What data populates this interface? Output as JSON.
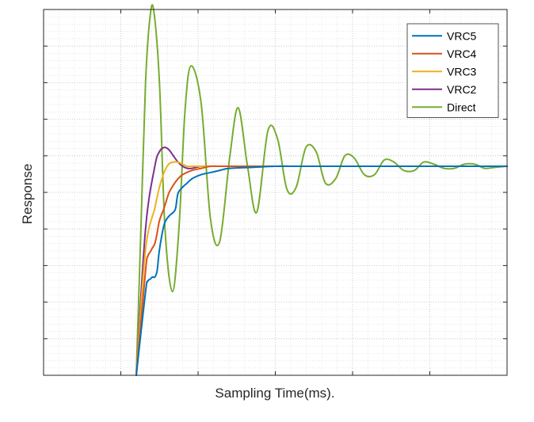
{
  "chart_data": {
    "type": "line",
    "title": "",
    "xlabel": "Sampling Time(ms).",
    "ylabel": "Response",
    "xlim": [
      0,
      1
    ],
    "ylim": [
      0,
      1.75
    ],
    "grid": true,
    "minor_grid": true,
    "x_ticks_count": 6,
    "y_ticks_count": 10,
    "tick_labels_shown": false,
    "legend": {
      "location": "top-right",
      "entries": [
        "VRC5",
        "VRC4",
        "VRC3",
        "VRC2",
        "Direct"
      ]
    },
    "series": [
      {
        "name": "VRC5",
        "color": "#0072BD",
        "x": [
          0.2,
          0.22,
          0.225,
          0.23,
          0.235,
          0.24,
          0.245,
          0.25,
          0.26,
          0.27,
          0.28,
          0.285,
          0.29,
          0.3,
          0.31,
          0.32,
          0.34,
          0.36,
          0.38,
          0.4,
          0.45,
          0.5,
          0.55,
          0.6,
          0.7,
          0.8,
          0.9,
          1.0
        ],
        "y": [
          0.0,
          0.4,
          0.45,
          0.46,
          0.47,
          0.47,
          0.5,
          0.6,
          0.72,
          0.76,
          0.78,
          0.8,
          0.87,
          0.9,
          0.92,
          0.94,
          0.96,
          0.97,
          0.98,
          0.99,
          0.995,
          1.0,
          1.0,
          1.0,
          1.0,
          1.0,
          1.0,
          1.0
        ]
      },
      {
        "name": "VRC4",
        "color": "#D95319",
        "x": [
          0.2,
          0.22,
          0.225,
          0.23,
          0.235,
          0.24,
          0.245,
          0.25,
          0.26,
          0.27,
          0.28,
          0.29,
          0.3,
          0.32,
          0.34,
          0.36,
          0.38,
          0.4,
          0.45,
          0.5,
          0.55,
          0.6,
          0.7,
          0.8,
          0.9,
          1.0
        ],
        "y": [
          0.0,
          0.5,
          0.57,
          0.59,
          0.61,
          0.63,
          0.68,
          0.74,
          0.8,
          0.87,
          0.91,
          0.94,
          0.96,
          0.98,
          0.99,
          1.0,
          1.0,
          1.0,
          1.0,
          1.0,
          1.0,
          1.0,
          1.0,
          1.0,
          1.0,
          1.0
        ]
      },
      {
        "name": "VRC3",
        "color": "#EDB120",
        "x": [
          0.2,
          0.22,
          0.24,
          0.25,
          0.26,
          0.27,
          0.28,
          0.29,
          0.3,
          0.31,
          0.32,
          0.34,
          0.36,
          0.38,
          0.4,
          0.45,
          0.5,
          0.6,
          0.7,
          0.8,
          0.9,
          1.0
        ],
        "y": [
          0.0,
          0.6,
          0.8,
          0.9,
          0.97,
          1.01,
          1.02,
          1.02,
          1.01,
          1.0,
          1.0,
          1.0,
          1.0,
          1.0,
          1.0,
          1.0,
          1.0,
          1.0,
          1.0,
          1.0,
          1.0,
          1.0
        ]
      },
      {
        "name": "VRC2",
        "color": "#7E2F8E",
        "x": [
          0.2,
          0.22,
          0.24,
          0.25,
          0.26,
          0.27,
          0.28,
          0.29,
          0.3,
          0.31,
          0.32,
          0.34,
          0.36,
          0.38,
          0.4,
          0.45,
          0.5,
          0.6,
          0.7,
          0.8,
          0.9,
          1.0
        ],
        "y": [
          0.0,
          0.7,
          1.0,
          1.07,
          1.09,
          1.08,
          1.05,
          1.02,
          1.0,
          0.99,
          0.99,
          1.0,
          1.0,
          1.0,
          1.0,
          1.0,
          1.0,
          1.0,
          1.0,
          1.0,
          1.0,
          1.0
        ]
      },
      {
        "name": "Direct",
        "color": "#77AC30",
        "x": [
          0.2,
          0.21,
          0.22,
          0.23,
          0.238,
          0.25,
          0.262,
          0.278,
          0.292,
          0.305,
          0.318,
          0.34,
          0.36,
          0.38,
          0.402,
          0.42,
          0.44,
          0.46,
          0.484,
          0.505,
          0.525,
          0.545,
          0.566,
          0.588,
          0.608,
          0.63,
          0.65,
          0.67,
          0.692,
          0.714,
          0.735,
          0.756,
          0.777,
          0.8,
          0.82,
          0.842,
          0.864,
          0.886,
          0.908,
          0.93,
          0.952,
          0.974,
          1.0
        ],
        "y": [
          0.0,
          0.7,
          1.4,
          1.72,
          1.74,
          1.4,
          0.7,
          0.4,
          0.7,
          1.26,
          1.48,
          1.3,
          0.75,
          0.64,
          1.05,
          1.28,
          1.0,
          0.78,
          1.17,
          1.13,
          0.89,
          0.9,
          1.09,
          1.07,
          0.92,
          0.94,
          1.05,
          1.04,
          0.96,
          0.96,
          1.03,
          1.02,
          0.98,
          0.98,
          1.02,
          1.01,
          0.99,
          0.99,
          1.01,
          1.01,
          0.99,
          0.995,
          1.0
        ]
      }
    ]
  }
}
